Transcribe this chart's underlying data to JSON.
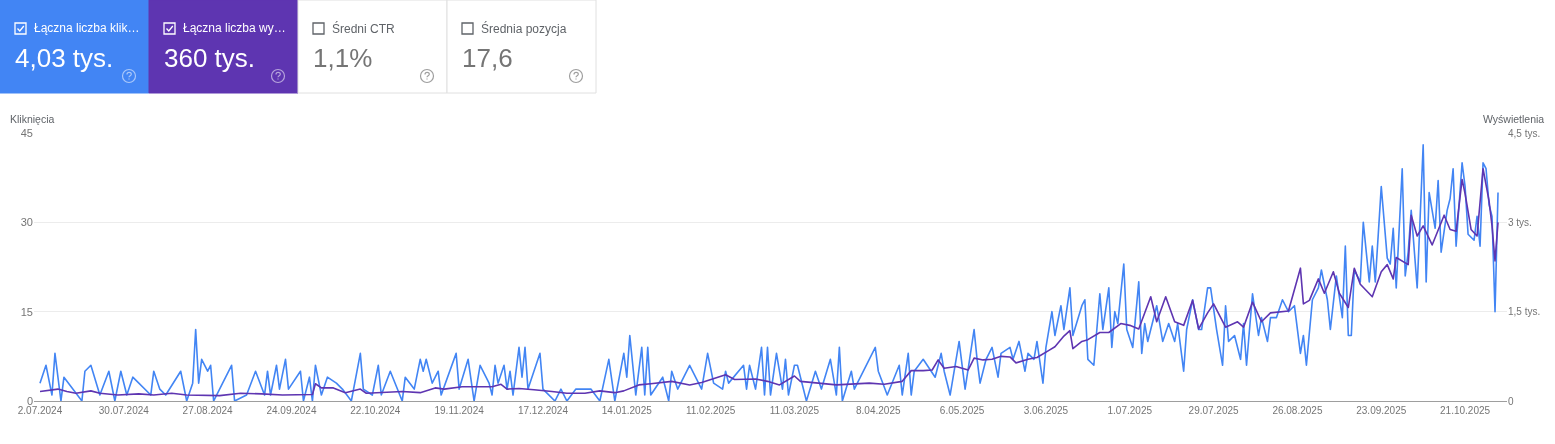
{
  "chart_data": [
    {
      "type": "other",
      "categories": [
        "Łączna liczba klik…",
        "Łączna liczba wy…",
        "Średni CTR",
        "Średnia pozycja"
      ],
      "annotations": [
        "4,03 tys.",
        "360 tys.",
        "1,1%",
        "17,6"
      ],
      "colors": [
        "#4285f4",
        "#5e35b1",
        "#ffffff",
        "#ffffff"
      ]
    },
    {
      "type": "line",
      "ylabel": "Kliknięcia",
      "y2label": "Wyświetlenia",
      "grid": "y",
      "xlim": [
        "2024-06-30",
        "2025-11-04"
      ],
      "xticks": [
        {
          "value": "2024-07-02",
          "label": "2.07.2024"
        },
        {
          "value": "2024-07-30",
          "label": "30.07.2024"
        },
        {
          "value": "2024-08-27",
          "label": "27.08.2024"
        },
        {
          "value": "2024-09-24",
          "label": "24.09.2024"
        },
        {
          "value": "2024-10-22",
          "label": "22.10.2024"
        },
        {
          "value": "2024-11-19",
          "label": "19.11.2024"
        },
        {
          "value": "2024-12-17",
          "label": "17.12.2024"
        },
        {
          "value": "2025-01-14",
          "label": "14.01.2025"
        },
        {
          "value": "2025-02-11",
          "label": "11.02.2025"
        },
        {
          "value": "2025-03-11",
          "label": "11.03.2025"
        },
        {
          "value": "2025-04-08",
          "label": "8.04.2025"
        },
        {
          "value": "2025-05-06",
          "label": "6.05.2025"
        },
        {
          "value": "2025-06-03",
          "label": "3.06.2025"
        },
        {
          "value": "2025-07-01",
          "label": "1.07.2025"
        },
        {
          "value": "2025-07-29",
          "label": "29.07.2025"
        },
        {
          "value": "2025-08-26",
          "label": "26.08.2025"
        },
        {
          "value": "2025-09-23",
          "label": "23.09.2025"
        },
        {
          "value": "2025-10-21",
          "label": "21.10.2025"
        }
      ],
      "ylim": [
        0,
        45
      ],
      "yticks": [
        0,
        15,
        30,
        45
      ],
      "y2lim": [
        0,
        4.5
      ],
      "y2ticks": [
        0,
        {
          "value": 1.5,
          "label": "1,5 tys."
        },
        {
          "value": 3,
          "label": "3 tys."
        },
        {
          "value": 4.5,
          "label": "4,5 tys."
        }
      ],
      "series": [
        {
          "color": "#4285f4",
          "axis": "y",
          "x": [
            "2024-07-02",
            "2024-07-04",
            "2024-07-06",
            "2024-07-07",
            "2024-07-09",
            "2024-07-10",
            "2024-07-16",
            "2024-07-17",
            "2024-07-19",
            "2024-07-22",
            "2024-07-25",
            "2024-07-27",
            "2024-07-29",
            "2024-07-31",
            "2024-08-02",
            "2024-08-08",
            "2024-08-09",
            "2024-08-11",
            "2024-08-13",
            "2024-08-18",
            "2024-08-20",
            "2024-08-22",
            "2024-08-23",
            "2024-08-24",
            "2024-08-25",
            "2024-08-27",
            "2024-08-28",
            "2024-08-29",
            "2024-09-01",
            "2024-09-04",
            "2024-09-05",
            "2024-09-09",
            "2024-09-12",
            "2024-09-15",
            "2024-09-16",
            "2024-09-17",
            "2024-09-19",
            "2024-09-20",
            "2024-09-22",
            "2024-09-23",
            "2024-09-27",
            "2024-09-28",
            "2024-09-30",
            "2024-10-01",
            "2024-10-02",
            "2024-10-04",
            "2024-10-06",
            "2024-10-09",
            "2024-10-11",
            "2024-10-14",
            "2024-10-17",
            "2024-10-18",
            "2024-10-21",
            "2024-10-23",
            "2024-10-24",
            "2024-10-27",
            "2024-10-31",
            "2024-11-01",
            "2024-11-04",
            "2024-11-06",
            "2024-11-07",
            "2024-11-08",
            "2024-11-10",
            "2024-11-12",
            "2024-11-13",
            "2024-11-18",
            "2024-11-19",
            "2024-11-22",
            "2024-11-24",
            "2024-11-26",
            "2024-11-29",
            "2024-11-30",
            "2024-12-01",
            "2024-12-02",
            "2024-12-04",
            "2024-12-05",
            "2024-12-06",
            "2024-12-07",
            "2024-12-09",
            "2024-12-10",
            "2024-12-11",
            "2024-12-12",
            "2024-12-16",
            "2024-12-17",
            "2024-12-21",
            "2024-12-23",
            "2024-12-25",
            "2024-12-28",
            "2025-01-02",
            "2025-01-05",
            "2025-01-08",
            "2025-01-10",
            "2025-01-13",
            "2025-01-14",
            "2025-01-15",
            "2025-01-17",
            "2025-01-19",
            "2025-01-20",
            "2025-01-21",
            "2025-01-22",
            "2025-01-26",
            "2025-01-28",
            "2025-01-29",
            "2025-01-31",
            "2025-02-04",
            "2025-02-08",
            "2025-02-10",
            "2025-02-12",
            "2025-02-15",
            "2025-02-16",
            "2025-02-17",
            "2025-02-22",
            "2025-02-23",
            "2025-02-24",
            "2025-02-26",
            "2025-02-28",
            "2025-03-01",
            "2025-03-02",
            "2025-03-03",
            "2025-03-05",
            "2025-03-07",
            "2025-03-08",
            "2025-03-09",
            "2025-03-11",
            "2025-03-12",
            "2025-03-15",
            "2025-03-18",
            "2025-03-20",
            "2025-03-23",
            "2025-03-25",
            "2025-03-26",
            "2025-03-27",
            "2025-03-30",
            "2025-03-31",
            "2025-04-07",
            "2025-04-08",
            "2025-04-11",
            "2025-04-15",
            "2025-04-16",
            "2025-04-18",
            "2025-04-19",
            "2025-04-20",
            "2025-04-23",
            "2025-04-27",
            "2025-04-29",
            "2025-04-30",
            "2025-05-02",
            "2025-05-05",
            "2025-05-07",
            "2025-05-10",
            "2025-05-11",
            "2025-05-12",
            "2025-05-14",
            "2025-05-16",
            "2025-05-18",
            "2025-05-19",
            "2025-05-22",
            "2025-05-23",
            "2025-05-25",
            "2025-05-27",
            "2025-05-28",
            "2025-05-30",
            "2025-05-31",
            "2025-06-02",
            "2025-06-03",
            "2025-06-05",
            "2025-06-06",
            "2025-06-08",
            "2025-06-09",
            "2025-06-11",
            "2025-06-12",
            "2025-06-15",
            "2025-06-16",
            "2025-06-17",
            "2025-06-19",
            "2025-06-21",
            "2025-06-22",
            "2025-06-24",
            "2025-06-25",
            "2025-06-26",
            "2025-06-27",
            "2025-06-29",
            "2025-06-30",
            "2025-07-02",
            "2025-07-04",
            "2025-07-05",
            "2025-07-06",
            "2025-07-07",
            "2025-07-10",
            "2025-07-12",
            "2025-07-14",
            "2025-07-16",
            "2025-07-17",
            "2025-07-19",
            "2025-07-20",
            "2025-07-22",
            "2025-07-24",
            "2025-07-25",
            "2025-07-27",
            "2025-07-28",
            "2025-07-30",
            "2025-08-01",
            "2025-08-02",
            "2025-08-03",
            "2025-08-05",
            "2025-08-07",
            "2025-08-08",
            "2025-08-09",
            "2025-08-11",
            "2025-08-13",
            "2025-08-14",
            "2025-08-16",
            "2025-08-17",
            "2025-08-19",
            "2025-08-21",
            "2025-08-23",
            "2025-08-25",
            "2025-08-27",
            "2025-08-28",
            "2025-08-29",
            "2025-08-31",
            "2025-09-02",
            "2025-09-03",
            "2025-09-05",
            "2025-09-06",
            "2025-09-08",
            "2025-09-10",
            "2025-09-11",
            "2025-09-12",
            "2025-09-13",
            "2025-09-14",
            "2025-09-16",
            "2025-09-17",
            "2025-09-19",
            "2025-09-20",
            "2025-09-21",
            "2025-09-23",
            "2025-09-25",
            "2025-09-26",
            "2025-09-27",
            "2025-09-28",
            "2025-09-30",
            "2025-10-01",
            "2025-10-02",
            "2025-10-03",
            "2025-10-05",
            "2025-10-07",
            "2025-10-08",
            "2025-10-09",
            "2025-10-11",
            "2025-10-12",
            "2025-10-13",
            "2025-10-15",
            "2025-10-16",
            "2025-10-17",
            "2025-10-18",
            "2025-10-20",
            "2025-10-21",
            "2025-10-22",
            "2025-10-24",
            "2025-10-25",
            "2025-10-26",
            "2025-10-27",
            "2025-10-28",
            "2025-10-29",
            "2025-10-30",
            "2025-10-31",
            "2025-11-01"
          ],
          "values": [
            3,
            6,
            1,
            8,
            0,
            4,
            0,
            5,
            6,
            1,
            5,
            0,
            5,
            1,
            4,
            1,
            5,
            2,
            1,
            5,
            0,
            3,
            12,
            3,
            7,
            5,
            6,
            0,
            3,
            6,
            0,
            1,
            5,
            1,
            5,
            1,
            6,
            2,
            7,
            2,
            5,
            0,
            4,
            0,
            6,
            1,
            4,
            3,
            2,
            0,
            8,
            2,
            1,
            6,
            1,
            5,
            0,
            4,
            2,
            7,
            5,
            7,
            3,
            5,
            1,
            8,
            2,
            7,
            0,
            6,
            3,
            1,
            6,
            3,
            6,
            2,
            5,
            1,
            9,
            4,
            9,
            2,
            8,
            2,
            0,
            2,
            0,
            2,
            2,
            0,
            7,
            0,
            8,
            4,
            11,
            1,
            9,
            1,
            9,
            1,
            4,
            0,
            5,
            2,
            6,
            2,
            8,
            3,
            2,
            5,
            3,
            6,
            2,
            6,
            2,
            9,
            1,
            9,
            1,
            8,
            2,
            7,
            1,
            6,
            6,
            0,
            5,
            2,
            7,
            1,
            9,
            0,
            5,
            2,
            9,
            5,
            1,
            6,
            1,
            8,
            1,
            5,
            7,
            4,
            8,
            5,
            1,
            10,
            2,
            12,
            7,
            3,
            7,
            9,
            4,
            8,
            9,
            7,
            10,
            5,
            8,
            7,
            10,
            3,
            9,
            15,
            11,
            16,
            12,
            19,
            11,
            16,
            17,
            7,
            6,
            18,
            12,
            19,
            9,
            15,
            13,
            23,
            12,
            9,
            20,
            8,
            13,
            10,
            16,
            10,
            13,
            10,
            13,
            5,
            12,
            17,
            12,
            12,
            19,
            19,
            12,
            6,
            16,
            10,
            11,
            7,
            13,
            6,
            18,
            11,
            14,
            10,
            14,
            14,
            17,
            15,
            16,
            8,
            11,
            6,
            17,
            19,
            22,
            17,
            12,
            21,
            14,
            26,
            11,
            11,
            22,
            20,
            30,
            20,
            26,
            20,
            36,
            24,
            23,
            29,
            19,
            39,
            21,
            25,
            32,
            19,
            43,
            20,
            35,
            29,
            37,
            25,
            32,
            34,
            39,
            26,
            40,
            36,
            28,
            27,
            31,
            26,
            40,
            39,
            33,
            31,
            15,
            35
          ]
        },
        {
          "color": "#5e35b1",
          "axis": "y2",
          "x": [
            "2024-07-02",
            "2024-07-08",
            "2024-07-11",
            "2024-07-14",
            "2024-07-19",
            "2024-07-22",
            "2024-07-28",
            "2024-08-04",
            "2024-08-09",
            "2024-08-15",
            "2024-08-20",
            "2024-08-31",
            "2024-09-07",
            "2024-09-14",
            "2024-09-21",
            "2024-10-01",
            "2024-10-02",
            "2024-10-04",
            "2024-10-08",
            "2024-10-12",
            "2024-10-17",
            "2024-10-19",
            "2024-10-31",
            "2024-11-06",
            "2024-11-11",
            "2024-11-14",
            "2024-11-20",
            "2024-11-30",
            "2024-12-03",
            "2024-12-05",
            "2024-12-09",
            "2024-12-14",
            "2024-12-20",
            "2024-12-25",
            "2024-12-31",
            "2025-01-05",
            "2025-01-10",
            "2025-01-13",
            "2025-01-18",
            "2025-01-22",
            "2025-01-29",
            "2025-02-04",
            "2025-02-08",
            "2025-02-16",
            "2025-02-19",
            "2025-02-26",
            "2025-03-02",
            "2025-03-06",
            "2025-03-11",
            "2025-03-13",
            "2025-03-19",
            "2025-03-25",
            "2025-04-05",
            "2025-04-10",
            "2025-04-16",
            "2025-04-19",
            "2025-04-23",
            "2025-04-26",
            "2025-04-28",
            "2025-04-30",
            "2025-05-04",
            "2025-05-08",
            "2025-05-10",
            "2025-05-13",
            "2025-05-16",
            "2025-05-19",
            "2025-05-22",
            "2025-05-24",
            "2025-05-28",
            "2025-05-31",
            "2025-06-04",
            "2025-06-06",
            "2025-06-09",
            "2025-06-11",
            "2025-06-12",
            "2025-06-15",
            "2025-06-17",
            "2025-06-21",
            "2025-06-24",
            "2025-06-28",
            "2025-07-01",
            "2025-07-04",
            "2025-07-08",
            "2025-07-10",
            "2025-07-13",
            "2025-07-16",
            "2025-07-19",
            "2025-07-22",
            "2025-07-24",
            "2025-07-27",
            "2025-07-29",
            "2025-08-02",
            "2025-08-06",
            "2025-08-08",
            "2025-08-11",
            "2025-08-14",
            "2025-08-17",
            "2025-08-23",
            "2025-08-27",
            "2025-08-28",
            "2025-08-30",
            "2025-09-02",
            "2025-09-04",
            "2025-09-07",
            "2025-09-09",
            "2025-09-12",
            "2025-09-14",
            "2025-09-16",
            "2025-09-20",
            "2025-09-23",
            "2025-09-25",
            "2025-09-27",
            "2025-09-28",
            "2025-10-02",
            "2025-10-03",
            "2025-10-05",
            "2025-10-07",
            "2025-10-10",
            "2025-10-14",
            "2025-10-16",
            "2025-10-18",
            "2025-10-20",
            "2025-10-21",
            "2025-10-23",
            "2025-10-25",
            "2025-10-27",
            "2025-10-29",
            "2025-10-30",
            "2025-10-31",
            "2025-11-01"
          ],
          "values": [
            0.16,
            0.2,
            0.16,
            0.13,
            0.17,
            0.13,
            0.1,
            0.12,
            0.1,
            0.13,
            0.1,
            0.09,
            0.13,
            0.12,
            0.1,
            0.11,
            0.29,
            0.22,
            0.22,
            0.14,
            0.2,
            0.13,
            0.16,
            0.14,
            0.22,
            0.2,
            0.24,
            0.24,
            0.28,
            0.2,
            0.21,
            0.19,
            0.16,
            0.13,
            0.13,
            0.17,
            0.14,
            0.17,
            0.27,
            0.29,
            0.33,
            0.27,
            0.31,
            0.44,
            0.36,
            0.37,
            0.33,
            0.27,
            0.42,
            0.33,
            0.3,
            0.27,
            0.3,
            0.28,
            0.33,
            0.51,
            0.51,
            0.52,
            0.69,
            0.55,
            0.58,
            0.52,
            0.72,
            0.69,
            0.7,
            0.75,
            0.74,
            0.64,
            0.7,
            0.73,
            0.85,
            0.91,
            1.09,
            1.18,
            0.88,
            1,
            1.03,
            1.15,
            1.15,
            1.3,
            1.27,
            1.21,
            1.75,
            1.33,
            1.75,
            1.33,
            1.27,
            1.69,
            1.21,
            1.48,
            1.63,
            1.24,
            1.33,
            1.24,
            1.66,
            1.33,
            1.48,
            1.51,
            2.23,
            1.63,
            1.69,
            2.05,
            1.81,
            2.17,
            1.81,
            1.57,
            2.23,
            1.96,
            1.75,
            2.17,
            2.29,
            2.05,
            2.41,
            2.29,
            3.12,
            2.77,
            2.94,
            2.62,
            3.12,
            2.88,
            2.85,
            3.72,
            3.48,
            2.88,
            2.77,
            3.9,
            3.36,
            2.94,
            2.35,
            3
          ]
        }
      ]
    }
  ]
}
